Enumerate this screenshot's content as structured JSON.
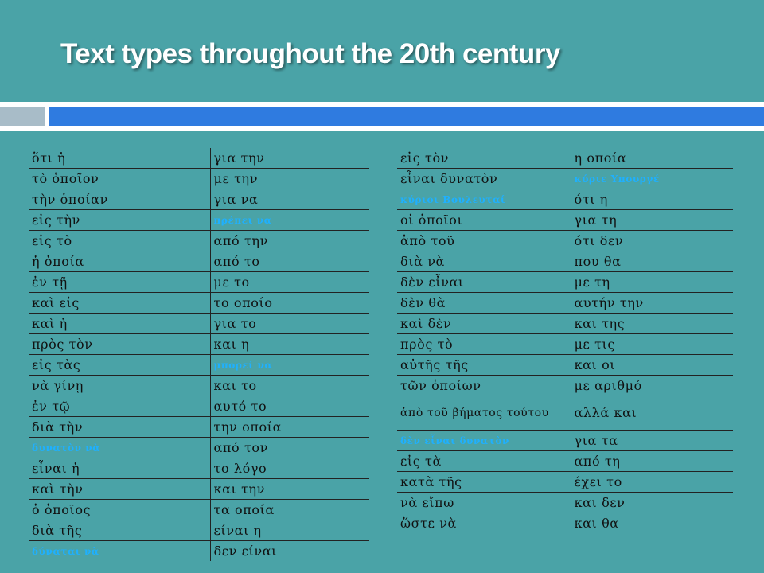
{
  "title": "Text types throughout the 20th century",
  "colors": {
    "highlight": "#1fb0ff",
    "background": "#4aa3a7",
    "accent_bar": "#2f7be0"
  },
  "left_table": [
    [
      "ὅτι ἡ",
      "για την"
    ],
    [
      "τὸ ὁποῖον",
      "με την"
    ],
    [
      "τὴν ὁποίαν",
      "για να"
    ],
    [
      "εἰς τὴν",
      "πρέπει να"
    ],
    [
      "εἰς τὸ",
      "από την"
    ],
    [
      "ἡ ὁποία",
      "από το"
    ],
    [
      "ἐν τῇ",
      "με το"
    ],
    [
      "καὶ εἰς",
      "το οποίο"
    ],
    [
      "καὶ ἡ",
      "για το"
    ],
    [
      "πρὸς τὸν",
      "και η"
    ],
    [
      "εἰς τὰς",
      "μπορεί να"
    ],
    [
      "νὰ γίνῃ",
      "και το"
    ],
    [
      "ἐν τῷ",
      "αυτό το"
    ],
    [
      "διὰ τὴν",
      "την οποία"
    ],
    [
      "δυνατὸν νὰ",
      "από τον"
    ],
    [
      "εἶναι ἡ",
      "το λόγο"
    ],
    [
      "καὶ τὴν",
      "και την"
    ],
    [
      "ὁ ὁποῖος",
      "τα οποία"
    ],
    [
      "διὰ τῆς",
      "είναι η"
    ],
    [
      "δύναται νὰ",
      "δεν είναι"
    ]
  ],
  "right_table": [
    [
      "εἰς τὸν",
      "η οποία"
    ],
    [
      "εἶναι δυνατὸν",
      "κύριε Υπουργέ"
    ],
    [
      "κύριοι Βουλευταί",
      "ότι η"
    ],
    [
      "οἱ ὁποῖοι",
      "για τη"
    ],
    [
      "ἀπὸ τοῦ",
      "ότι δεν"
    ],
    [
      "διὰ νὰ",
      "που θα"
    ],
    [
      "δὲν εἶναι",
      "με τη"
    ],
    [
      "δὲν θὰ",
      "αυτήν την"
    ],
    [
      "καὶ δὲν",
      "και της"
    ],
    [
      "πρὸς τὸ",
      "με τις"
    ],
    [
      "αὐτῆς τῆς",
      "και οι"
    ],
    [
      "τῶν ὁποίων",
      "με αριθμό"
    ],
    [
      "ἀπὸ τοῦ βήματος τούτου",
      "αλλά και"
    ],
    [
      "δὲν εἶναι δυνατὸν",
      "για τα"
    ],
    [
      "εἰς τὰ",
      "από τη"
    ],
    [
      "κατὰ τῆς",
      "έχει το"
    ],
    [
      "νὰ εἴπω",
      "και δεν"
    ],
    [
      "ὥστε νὰ",
      "και θα"
    ]
  ]
}
